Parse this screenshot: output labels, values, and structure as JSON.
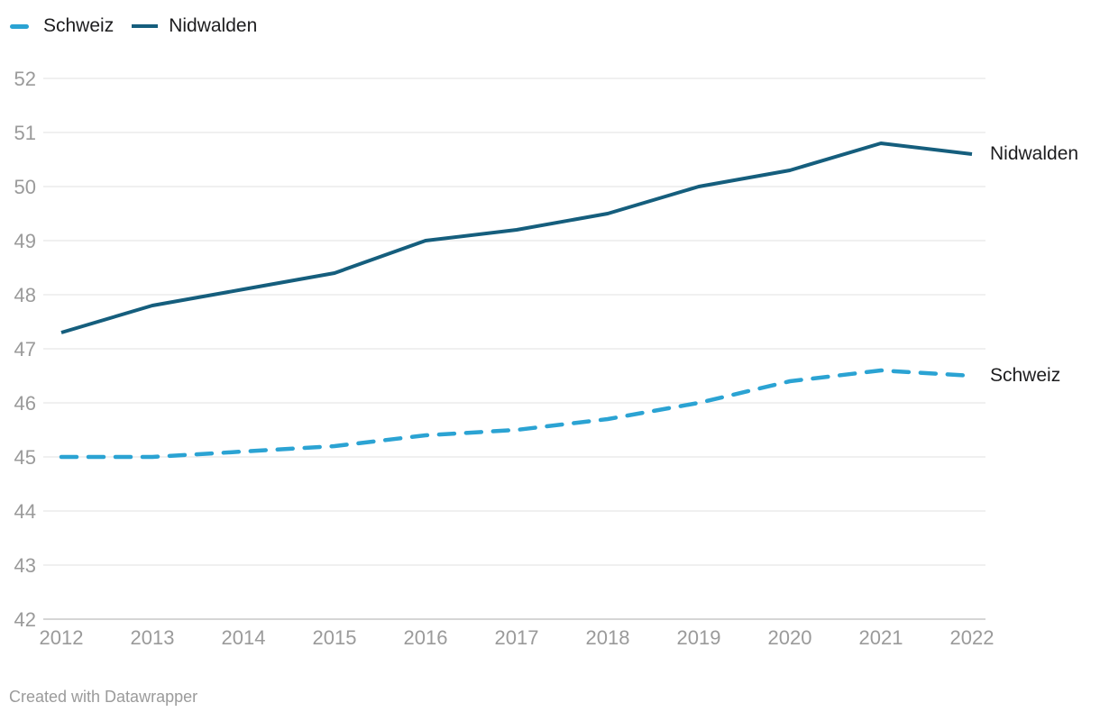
{
  "legend": {
    "items": [
      {
        "label": "Schweiz",
        "color": "#2ba3d3",
        "style": "dashed"
      },
      {
        "label": "Nidwalden",
        "color": "#155e7d",
        "style": "solid"
      }
    ]
  },
  "footer": {
    "credit": "Created with Datawrapper"
  },
  "chart_data": {
    "type": "line",
    "x": [
      2012,
      2013,
      2014,
      2015,
      2016,
      2017,
      2018,
      2019,
      2020,
      2021,
      2022
    ],
    "series": [
      {
        "name": "Schweiz",
        "color": "#2ba3d3",
        "dashed": true,
        "values": [
          45.0,
          45.0,
          45.1,
          45.2,
          45.4,
          45.5,
          45.7,
          46.0,
          46.4,
          46.6,
          46.5
        ]
      },
      {
        "name": "Nidwalden",
        "color": "#155e7d",
        "dashed": false,
        "values": [
          47.3,
          47.8,
          48.1,
          48.4,
          49.0,
          49.2,
          49.5,
          50.0,
          50.3,
          50.8,
          50.6
        ]
      }
    ],
    "title": "",
    "xlabel": "",
    "ylabel": "",
    "ylim": [
      42,
      52
    ],
    "yticks": [
      42,
      43,
      44,
      45,
      46,
      47,
      48,
      49,
      50,
      51,
      52
    ],
    "grid": "horizontal",
    "gridline_color": "#e6e6e6",
    "baseline_color": "#c9c9c9",
    "tick_label_color": "#9a9a9a",
    "legend_position": "top-left",
    "direct_labels": true
  }
}
